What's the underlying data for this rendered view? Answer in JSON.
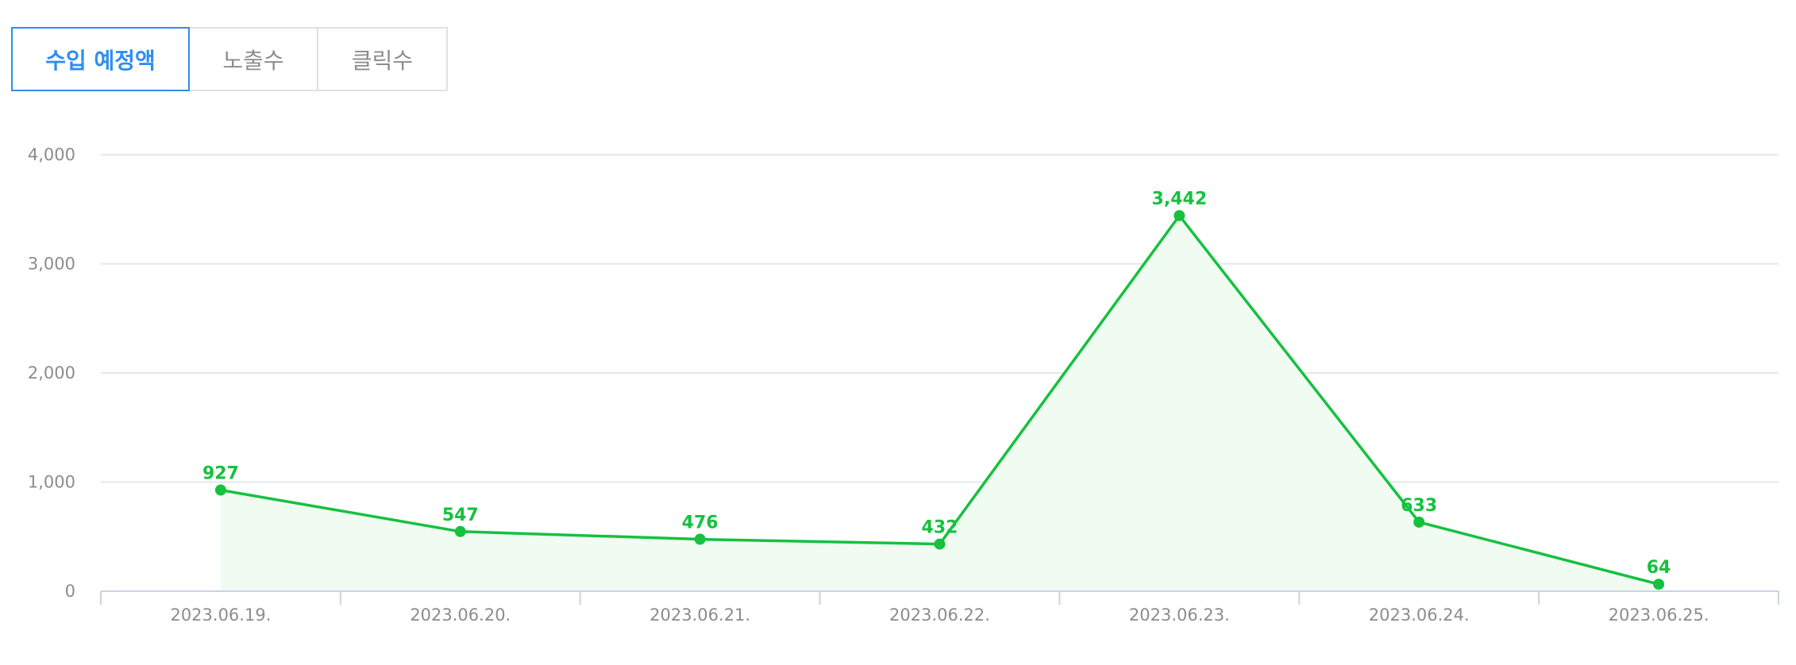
{
  "tabs": [
    {
      "label": "수입 예정액",
      "active": true
    },
    {
      "label": "노출수",
      "active": false
    },
    {
      "label": "클릭수",
      "active": false
    }
  ],
  "colors": {
    "series": "#15c13f",
    "area": "#f0fbf2",
    "grid": "#e5e7eb",
    "axis": "#c9d3e6",
    "tick_text": "#8c8c8c",
    "tab_active": "#2f8eef"
  },
  "chart_data": {
    "type": "line",
    "area_fill": true,
    "x": [
      "2023.06.19.",
      "2023.06.20.",
      "2023.06.21.",
      "2023.06.22.",
      "2023.06.23.",
      "2023.06.24.",
      "2023.06.25."
    ],
    "series": [
      {
        "values": [
          927,
          547,
          476,
          432,
          3442,
          633,
          64
        ],
        "data_labels": [
          "927",
          "547",
          "476",
          "432",
          "3,442",
          "633",
          "64"
        ]
      }
    ],
    "yticks": [
      0,
      1000,
      2000,
      3000,
      4000
    ],
    "ytick_labels": [
      "0",
      "1,000",
      "2,000",
      "3,000",
      "4,000"
    ],
    "ylim": [
      0,
      4000
    ],
    "grid": true,
    "legend": "none"
  }
}
